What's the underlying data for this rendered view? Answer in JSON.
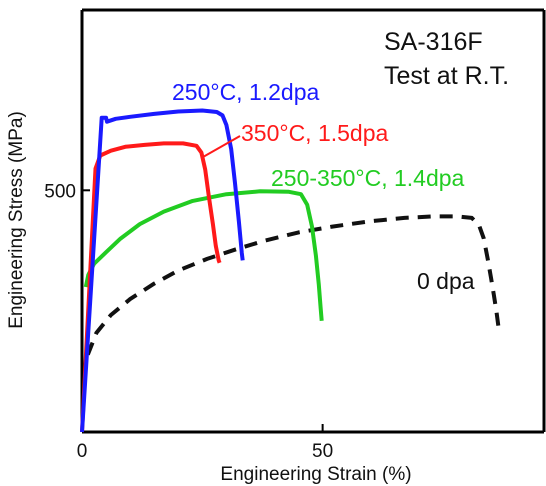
{
  "chart_data": {
    "type": "line",
    "title": "",
    "xlabel": "Engineering Strain (%)",
    "ylabel": "Engineering Stress (MPa)",
    "xlim": [
      0,
      96
    ],
    "ylim": [
      0,
      873
    ],
    "x_ticks": [
      0,
      50
    ],
    "y_ticks": [
      500
    ],
    "grid": false,
    "inset_text": [
      "SA-316F",
      "Test at R.T."
    ],
    "series": [
      {
        "name": "250°C, 1.2dpa",
        "color": "#1a1aff",
        "x": [
          0,
          3.6,
          4.1,
          5.0,
          5.2,
          7,
          10,
          15,
          20,
          25,
          28,
          29.2,
          30,
          31,
          31.8,
          32.6,
          33.2,
          33.4
        ],
        "y": [
          0,
          570,
          650,
          650,
          642,
          648,
          652,
          658,
          663,
          665,
          662,
          655,
          635,
          585,
          515,
          435,
          370,
          355
        ]
      },
      {
        "name": "350°C, 1.5dpa",
        "color": "#ff1a1a",
        "x": [
          0,
          2.8,
          3.8,
          6,
          9,
          13,
          17,
          21,
          23.8,
          24.8,
          25.6,
          26.4,
          27.2,
          27.8,
          28.4,
          28.6
        ],
        "y": [
          0,
          545,
          572,
          582,
          590,
          594,
          597,
          597,
          592,
          578,
          543,
          485,
          430,
          385,
          355,
          350
        ]
      },
      {
        "name": "250-350°C, 1.4dpa",
        "color": "#22cc22",
        "x": [
          0.8,
          1.3,
          2.5,
          5,
          8,
          12,
          17,
          23,
          30,
          37,
          43,
          45.5,
          46.8,
          47.8,
          48.6,
          49.2,
          49.6,
          49.8
        ],
        "y": [
          300,
          325,
          348,
          372,
          400,
          430,
          456,
          478,
          492,
          498,
          497,
          492,
          470,
          425,
          365,
          305,
          255,
          230
        ]
      },
      {
        "name": "0 dpa",
        "color": "#111111",
        "dashed": true,
        "x": [
          1.2,
          3,
          6,
          10,
          15,
          20,
          26,
          32,
          38,
          45,
          52,
          60,
          67,
          73,
          78,
          81,
          82.5,
          83.5,
          84.3,
          85,
          85.6,
          86.1,
          86.5
        ],
        "y": [
          160,
          205,
          242,
          275,
          307,
          334,
          358,
          378,
          396,
          413,
          425,
          436,
          443,
          446,
          446,
          443,
          428,
          400,
          358,
          318,
          283,
          250,
          220
        ]
      }
    ]
  }
}
